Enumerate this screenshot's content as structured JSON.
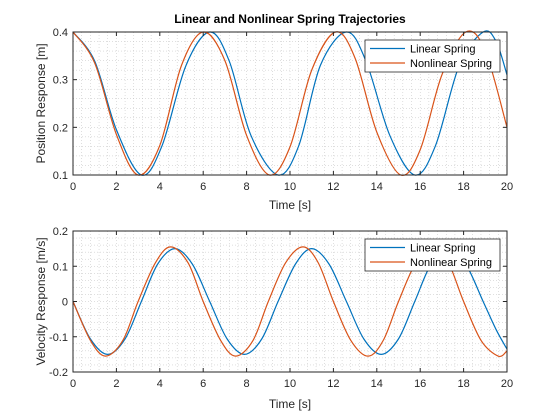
{
  "colors": {
    "linear": "#0072BD",
    "nonlinear": "#D95319",
    "axis": "#262626",
    "grid": "#bfbfbf"
  },
  "chart_data": [
    {
      "type": "line",
      "title": "Linear and Nonlinear Spring Trajectories",
      "xlabel": "Time [s]",
      "ylabel": "Position Response [m]",
      "xlim": [
        0,
        20
      ],
      "ylim": [
        0.1,
        0.4
      ],
      "xticks": [
        0,
        2,
        4,
        6,
        8,
        10,
        12,
        14,
        16,
        18,
        20
      ],
      "xtick_labels": [
        "0",
        "2",
        "4",
        "6",
        "8",
        "10",
        "12",
        "14",
        "16",
        "18",
        "20"
      ],
      "yticks": [
        0.1,
        0.2,
        0.3,
        0.4
      ],
      "ytick_labels": [
        "0.1",
        "0.2",
        "0.3",
        "0.4"
      ],
      "grid": "dotted major and minor",
      "legend_position": "top-right",
      "series": [
        {
          "name": "Linear Spring",
          "color": "#0072BD",
          "x": [
            0,
            1.0,
            2.0,
            3.15,
            4.1,
            5.2,
            6.3,
            7.2,
            8.2,
            9.45,
            10.4,
            11.4,
            12.6,
            13.5,
            14.6,
            15.75,
            16.7,
            17.8,
            18.9,
            19.5,
            20
          ],
          "y": [
            0.4,
            0.339,
            0.195,
            0.1,
            0.161,
            0.329,
            0.4,
            0.339,
            0.183,
            0.1,
            0.161,
            0.33,
            0.4,
            0.339,
            0.183,
            0.1,
            0.161,
            0.33,
            0.4,
            0.38,
            0.31
          ]
        },
        {
          "name": "Nonlinear Spring",
          "color": "#D95319",
          "x": [
            0,
            1.0,
            2.0,
            3.0,
            4.0,
            5.0,
            6.0,
            7.0,
            8.0,
            9.05,
            10.0,
            11.0,
            12.1,
            13.0,
            14.0,
            15.1,
            16.0,
            17.0,
            18.1,
            19.0,
            20
          ],
          "y": [
            0.4,
            0.335,
            0.185,
            0.1,
            0.162,
            0.33,
            0.4,
            0.34,
            0.183,
            0.1,
            0.159,
            0.32,
            0.4,
            0.345,
            0.19,
            0.1,
            0.153,
            0.31,
            0.4,
            0.36,
            0.2
          ]
        }
      ]
    },
    {
      "type": "line",
      "title": "",
      "xlabel": "Time [s]",
      "ylabel": "Velocity Response [m/s]",
      "xlim": [
        0,
        20
      ],
      "ylim": [
        -0.2,
        0.2
      ],
      "xticks": [
        0,
        2,
        4,
        6,
        8,
        10,
        12,
        14,
        16,
        18,
        20
      ],
      "xtick_labels": [
        "0",
        "2",
        "4",
        "6",
        "8",
        "10",
        "12",
        "14",
        "16",
        "18",
        "20"
      ],
      "yticks": [
        -0.2,
        -0.1,
        0,
        0.1,
        0.2
      ],
      "ytick_labels": [
        "-0.2",
        "-0.1",
        "0",
        "0.1",
        "0.2"
      ],
      "grid": "dotted major and minor",
      "legend_position": "top-right",
      "series": [
        {
          "name": "Linear Spring",
          "color": "#0072BD",
          "x": [
            0,
            0.8,
            1.6,
            2.4,
            3.15,
            3.9,
            4.7,
            5.5,
            6.3,
            7.1,
            7.9,
            8.7,
            9.45,
            10.25,
            11.0,
            11.8,
            12.6,
            13.4,
            14.2,
            15.0,
            15.75,
            16.5,
            17.3,
            18.1,
            18.9,
            19.5,
            20
          ],
          "y": [
            0,
            -0.106,
            -0.15,
            -0.106,
            0,
            0.106,
            0.15,
            0.106,
            0,
            -0.106,
            -0.15,
            -0.106,
            0,
            0.106,
            0.15,
            0.106,
            0,
            -0.106,
            -0.15,
            -0.106,
            0,
            0.106,
            0.15,
            0.106,
            0,
            -0.08,
            -0.135
          ]
        },
        {
          "name": "Nonlinear Spring",
          "color": "#D95319",
          "x": [
            0,
            0.8,
            1.5,
            2.3,
            3.0,
            3.8,
            4.5,
            5.3,
            6.0,
            6.8,
            7.5,
            8.3,
            9.0,
            9.8,
            10.6,
            11.3,
            12.0,
            12.8,
            13.6,
            14.3,
            15.0,
            15.8,
            16.6,
            17.3,
            18.0,
            18.8,
            19.6,
            20
          ],
          "y": [
            0,
            -0.11,
            -0.155,
            -0.11,
            0,
            0.11,
            0.155,
            0.11,
            0,
            -0.11,
            -0.155,
            -0.11,
            0,
            0.11,
            0.155,
            0.11,
            0,
            -0.11,
            -0.155,
            -0.11,
            0,
            0.11,
            0.155,
            0.11,
            0,
            -0.11,
            -0.155,
            -0.14
          ]
        }
      ]
    }
  ]
}
